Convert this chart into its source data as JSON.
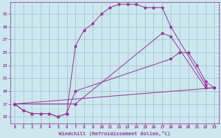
{
  "xlabel": "Windchill (Refroidissement éolien,°C)",
  "bg_color": "#cce8ee",
  "grid_color": "#99bbcc",
  "line_color": "#993399",
  "xlim": [
    -0.5,
    23.5
  ],
  "ylim": [
    14.0,
    32.8
  ],
  "xticks": [
    0,
    1,
    2,
    3,
    4,
    5,
    6,
    7,
    8,
    9,
    10,
    11,
    12,
    13,
    14,
    15,
    16,
    17,
    18,
    19,
    20,
    21,
    22,
    23
  ],
  "yticks": [
    15,
    17,
    19,
    21,
    23,
    25,
    27,
    29,
    31
  ],
  "lines": [
    {
      "x": [
        0,
        1,
        2,
        3,
        4,
        5,
        6,
        7,
        8,
        9,
        10,
        11,
        12,
        13,
        14,
        15,
        16,
        17,
        18,
        22
      ],
      "y": [
        17,
        16,
        15.5,
        15.5,
        15.5,
        15.0,
        15.5,
        26,
        28.5,
        29.5,
        31,
        32,
        32.5,
        32.5,
        32.5,
        32,
        32,
        32,
        29,
        20
      ]
    },
    {
      "x": [
        0,
        1,
        2,
        3,
        4,
        5,
        6,
        7,
        18,
        19,
        20,
        21,
        22,
        23
      ],
      "y": [
        17,
        16,
        15.5,
        15.5,
        15.5,
        15.0,
        15.5,
        19,
        24,
        25,
        25,
        23,
        20.5,
        19.5
      ]
    },
    {
      "x": [
        0,
        23
      ],
      "y": [
        17,
        19.5
      ]
    },
    {
      "x": [
        0,
        7,
        17,
        18,
        22,
        23
      ],
      "y": [
        17,
        17,
        28,
        27.5,
        19.5,
        19.5
      ]
    }
  ]
}
